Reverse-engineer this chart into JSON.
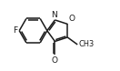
{
  "bg_color": "#ffffff",
  "line_color": "#1a1a1a",
  "line_width": 1.1,
  "font_size": 6.5,
  "label_F": "F",
  "label_O": "O",
  "label_N": "N",
  "label_CHO_O": "O",
  "label_CH3": "CH3"
}
